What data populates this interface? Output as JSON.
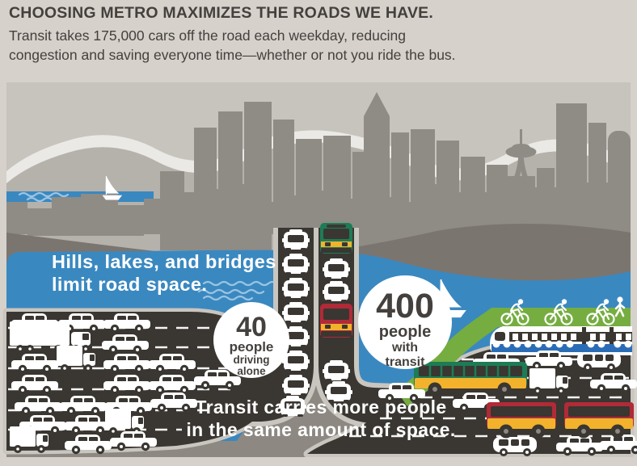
{
  "header": {
    "title": "CHOOSING METRO MAXIMIZES THE ROADS WE HAVE.",
    "subtitle_line1": "Transit takes 175,000 cars off the road each weekday, reducing",
    "subtitle_line2": "congestion and saving everyone time—whether or not you ride the bus."
  },
  "labels": {
    "hills_line1": "Hills, lakes, and bridges",
    "hills_line2": "limit road space.",
    "transit_line1": "Transit carries more people",
    "transit_line2": "in the same amount of space."
  },
  "badges": {
    "drive": {
      "value": "40",
      "line1": "people",
      "line2": "driving",
      "line3": "alone"
    },
    "transit": {
      "value": "400",
      "line1": "people",
      "line2": "with",
      "line3": "transit"
    }
  },
  "colors": {
    "paper": "#d6d1ca",
    "sky": "#c7c3bd",
    "mtn": "#b5b1ab",
    "snow": "#ebe9e5",
    "bld": "#8f8b85",
    "hill": "#7b7570",
    "ground": "#8d8882",
    "water": "#3a88c0",
    "road": "#3a3631",
    "edge": "#c9c5bf",
    "lane": "#75ad41",
    "mgreen": "#1d7c55",
    "myellow": "#f3b22c",
    "mred": "#b12a38",
    "tblue": "#2a6db6",
    "ink": "#44403d",
    "squig": "#9cc4e2"
  },
  "icons": [
    "space-needle-icon",
    "sailboat-icon",
    "car-icon",
    "truck-icon",
    "van-icon",
    "bus-icon",
    "train-icon",
    "bicycle-icon",
    "pedestrian-icon",
    "wave-icon"
  ]
}
